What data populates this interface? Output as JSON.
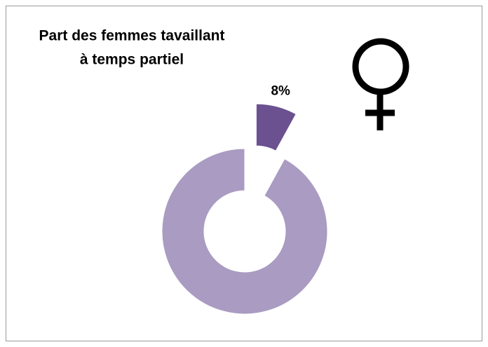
{
  "chart_data": {
    "type": "pie",
    "donut": true,
    "title": [
      "Part des femmes tavaillant",
      "à temps partiel"
    ],
    "values": [
      8,
      92
    ],
    "value_labels": [
      "8%",
      null
    ],
    "colors": [
      "#6c5190",
      "#a99bc1"
    ],
    "explode": [
      true,
      false
    ]
  }
}
